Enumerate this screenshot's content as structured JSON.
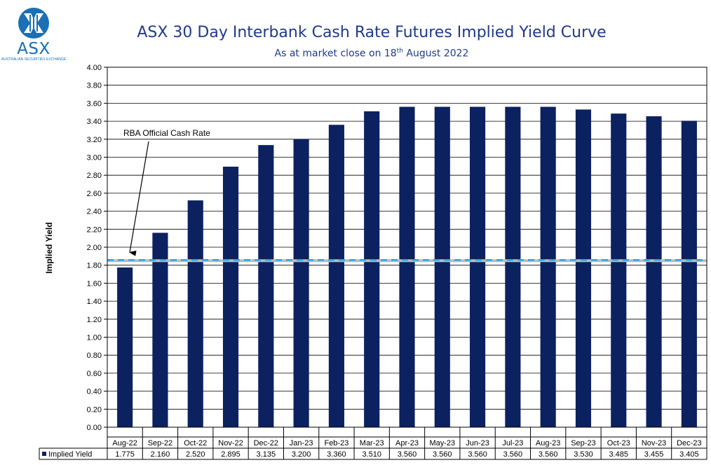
{
  "logo": {
    "name": "ASX",
    "subtitle": "AUSTRALIAN SECURITIES EXCHANGE",
    "color": "#1a6fb5"
  },
  "title": {
    "main": "ASX 30 Day Interbank Cash Rate Futures Implied Yield Curve",
    "subtitle_prefix": "As at market close on 18",
    "subtitle_sup": "th",
    "subtitle_suffix": " August 2022"
  },
  "chart_data": {
    "type": "bar",
    "title": "ASX 30 Day Interbank Cash Rate Futures Implied Yield Curve",
    "ylabel": "Implied Yield",
    "xlabel": "",
    "ylim": [
      0,
      4.0
    ],
    "ytick_step": 0.2,
    "grid": true,
    "categories": [
      "Aug-22",
      "Sep-22",
      "Oct-22",
      "Nov-22",
      "Dec-22",
      "Jan-23",
      "Feb-23",
      "Mar-23",
      "Apr-23",
      "May-23",
      "Jun-23",
      "Jul-23",
      "Aug-23",
      "Sep-23",
      "Oct-23",
      "Nov-23",
      "Dec-23"
    ],
    "series": [
      {
        "name": "Implied Yield",
        "color": "#0b2160",
        "values": [
          1.775,
          2.16,
          2.52,
          2.895,
          3.135,
          3.2,
          3.36,
          3.51,
          3.56,
          3.56,
          3.56,
          3.56,
          3.56,
          3.53,
          3.485,
          3.455,
          3.405
        ],
        "labels": [
          "1.775",
          "2.160",
          "2.520",
          "2.895",
          "3.135",
          "3.200",
          "3.360",
          "3.510",
          "3.560",
          "3.560",
          "3.560",
          "3.560",
          "3.560",
          "3.530",
          "3.485",
          "3.455",
          "3.405"
        ]
      }
    ],
    "reference_line": {
      "label": "RBA Official Cash Rate",
      "value": 1.85,
      "color": "#2aa6e8"
    },
    "data_table": true
  }
}
